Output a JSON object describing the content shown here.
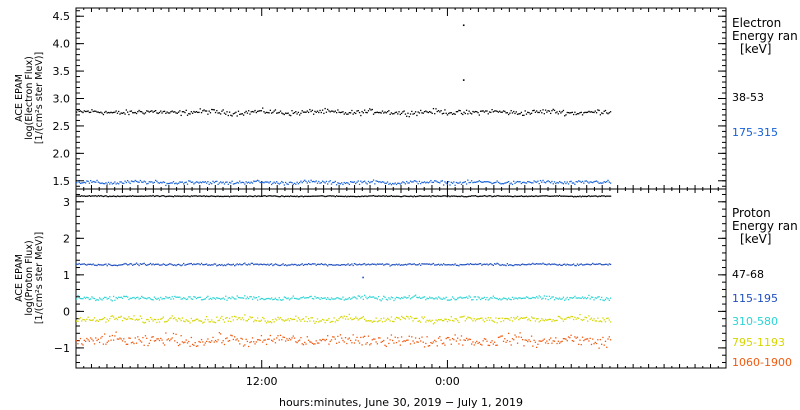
{
  "chart_data": [
    {
      "type": "scatter",
      "panel": "electron",
      "ylabel_lines": [
        "ACE EPAM",
        "log(Electron Flux)",
        "[1/(cm²s ster MeV)]"
      ],
      "ylim": [
        1.35,
        4.65
      ],
      "yticks": [
        "1.5",
        "2.0",
        "2.5",
        "3.0",
        "3.5",
        "4.0",
        "4.5"
      ],
      "yticks_values": [
        1.5,
        2.0,
        2.5,
        3.0,
        3.5,
        4.0,
        4.5
      ],
      "legend_title_lines": [
        "Electron",
        "Energy ran",
        "[keV]"
      ],
      "series": [
        {
          "name": "38-53",
          "color": "#000000",
          "base": 2.76,
          "jitter": 0.07,
          "x_range": [
            0,
            34.5
          ],
          "outliers": [
            [
              25.0,
              4.35
            ],
            [
              25.0,
              3.35
            ]
          ]
        },
        {
          "name": "175-315",
          "color": "#1560d8",
          "base": 1.48,
          "jitter": 0.05,
          "x_range": [
            0,
            34.5
          ],
          "outliers": []
        }
      ]
    },
    {
      "type": "scatter",
      "panel": "proton",
      "ylabel_lines": [
        "ACE EPAM",
        "log(Proton Flux)",
        "[1/(cm²s ster MeV)]"
      ],
      "ylim": [
        -1.55,
        3.35
      ],
      "yticks": [
        "−1",
        "0",
        "1",
        "2",
        "3"
      ],
      "yticks_values": [
        -1,
        0,
        1,
        2,
        3
      ],
      "legend_title_lines": [
        "Proton",
        "Energy ran",
        "[keV]"
      ],
      "series": [
        {
          "name": "47-68",
          "color": "#000000",
          "base": 3.17,
          "jitter": 0.02,
          "x_range": [
            0,
            34.5
          ],
          "outliers": []
        },
        {
          "name": "115-195",
          "color": "#1f4fc0",
          "base": 1.3,
          "jitter": 0.04,
          "x_range": [
            0,
            34.5
          ],
          "outliers": [
            [
              18.5,
              0.95
            ]
          ]
        },
        {
          "name": "310-580",
          "color": "#2ad4d4",
          "base": 0.38,
          "jitter": 0.08,
          "x_range": [
            0,
            34.5
          ],
          "outliers": []
        },
        {
          "name": "795-1193",
          "color": "#d6d600",
          "base": -0.2,
          "jitter": 0.13,
          "x_range": [
            0,
            34.5
          ],
          "outliers": []
        },
        {
          "name": "1060-1900",
          "color": "#f05a10",
          "base": -0.78,
          "jitter": 0.22,
          "x_range": [
            0,
            34.5
          ],
          "outliers": []
        }
      ]
    }
  ],
  "x_axis": {
    "range_hours": [
      0,
      42
    ],
    "major_ticks": [
      {
        "hours": 12,
        "label": "12:00"
      },
      {
        "hours": 24,
        "label": "0:00"
      }
    ],
    "xlabel": "hours:minutes, June 30, 2019 − July  1, 2019"
  }
}
